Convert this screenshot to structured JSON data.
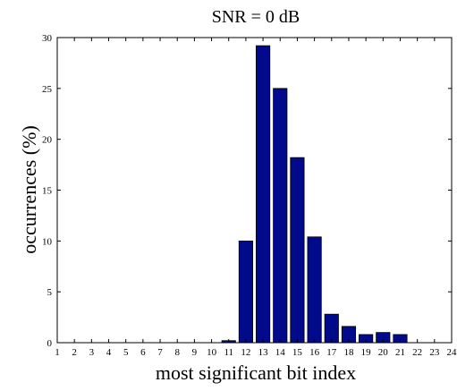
{
  "chart_data": {
    "type": "bar",
    "title": "SNR = 0 dB",
    "xlabel": "most significant bit index",
    "ylabel": "occurrences (%)",
    "categories": [
      "1",
      "2",
      "3",
      "4",
      "5",
      "6",
      "7",
      "8",
      "9",
      "10",
      "11",
      "12",
      "13",
      "14",
      "15",
      "16",
      "17",
      "18",
      "19",
      "20",
      "21",
      "22",
      "23",
      "24"
    ],
    "values": [
      0,
      0,
      0,
      0,
      0,
      0,
      0,
      0,
      0,
      0,
      0.2,
      10,
      29.2,
      25,
      18.2,
      10.4,
      2.8,
      1.6,
      0.8,
      1.0,
      0.8,
      0,
      0,
      0
    ],
    "xlim": [
      1,
      24
    ],
    "ylim": [
      0,
      30
    ],
    "yticks": [
      0,
      5,
      10,
      15,
      20,
      25,
      30
    ],
    "grid": false,
    "bar_color": "#000a8b",
    "bar_edge_color": "#000000"
  }
}
